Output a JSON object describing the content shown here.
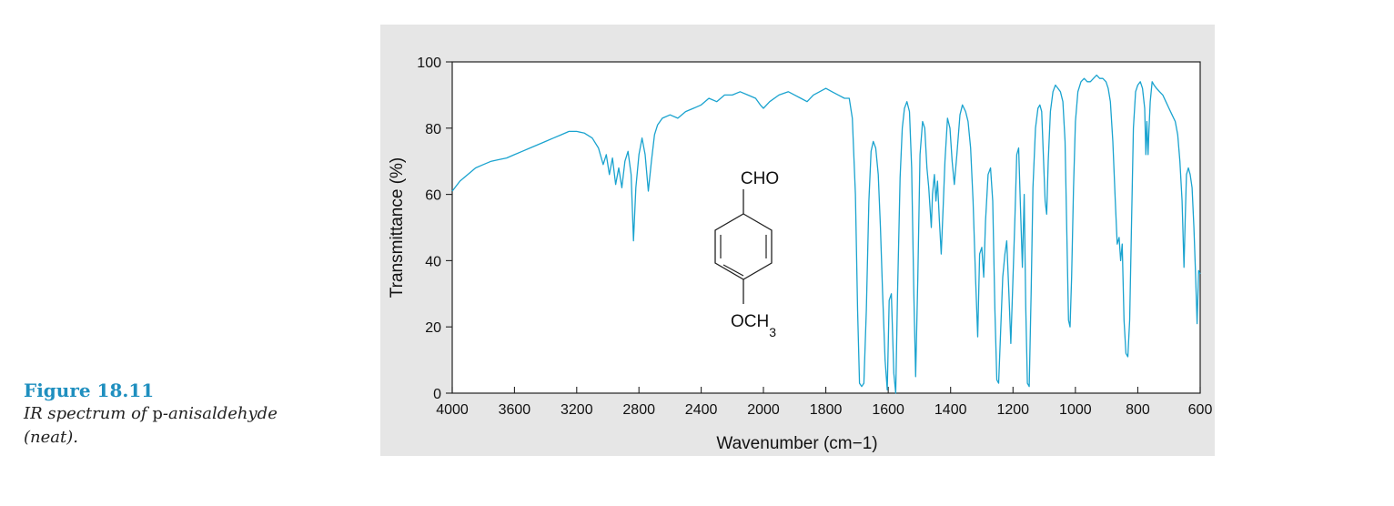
{
  "caption": {
    "label": "Figure 18.11",
    "text_prefix": "IR spectrum of ",
    "compound": "p",
    "text_suffix": "-anisaldehyde",
    "text_line2": "(neat)."
  },
  "molecule": {
    "top_group": "CHO",
    "bottom_group": "OCH",
    "bottom_subscript": "3"
  },
  "colors": {
    "line": "#1aa3cf",
    "panel": "#e6e6e6",
    "plot_bg": "#ffffff",
    "axis": "#222222"
  },
  "chart_data": {
    "type": "line",
    "title": "",
    "xlabel": "Wavenumber (cm−1)",
    "ylabel": "Transmittance (%)",
    "xlim": [
      4000,
      600
    ],
    "x_reversed": true,
    "ylim": [
      0,
      100
    ],
    "grid": false,
    "x_ticks": [
      4000,
      3600,
      3200,
      2800,
      2400,
      2000,
      1800,
      1600,
      1400,
      1200,
      1000,
      800,
      600
    ],
    "y_ticks": [
      0,
      20,
      40,
      60,
      80,
      100
    ],
    "series": [
      {
        "points": [
          [
            4000,
            61
          ],
          [
            3950,
            64
          ],
          [
            3900,
            66
          ],
          [
            3850,
            68
          ],
          [
            3800,
            69
          ],
          [
            3750,
            70
          ],
          [
            3700,
            70.5
          ],
          [
            3650,
            71
          ],
          [
            3600,
            72
          ],
          [
            3550,
            73
          ],
          [
            3500,
            74
          ],
          [
            3450,
            75
          ],
          [
            3400,
            76
          ],
          [
            3350,
            77
          ],
          [
            3300,
            78
          ],
          [
            3250,
            79
          ],
          [
            3200,
            79
          ],
          [
            3150,
            78.5
          ],
          [
            3100,
            77
          ],
          [
            3060,
            74
          ],
          [
            3030,
            69
          ],
          [
            3010,
            72
          ],
          [
            2990,
            66
          ],
          [
            2970,
            71
          ],
          [
            2950,
            63
          ],
          [
            2930,
            68
          ],
          [
            2910,
            62
          ],
          [
            2890,
            70
          ],
          [
            2870,
            73
          ],
          [
            2850,
            66
          ],
          [
            2835,
            46
          ],
          [
            2820,
            62
          ],
          [
            2800,
            72
          ],
          [
            2780,
            77
          ],
          [
            2760,
            72
          ],
          [
            2740,
            61
          ],
          [
            2720,
            70
          ],
          [
            2700,
            78
          ],
          [
            2680,
            81
          ],
          [
            2650,
            83
          ],
          [
            2600,
            84
          ],
          [
            2550,
            83
          ],
          [
            2500,
            85
          ],
          [
            2450,
            86
          ],
          [
            2400,
            87
          ],
          [
            2350,
            89
          ],
          [
            2300,
            88
          ],
          [
            2250,
            90
          ],
          [
            2200,
            90
          ],
          [
            2150,
            91
          ],
          [
            2100,
            90
          ],
          [
            2050,
            89
          ],
          [
            2020,
            87
          ],
          [
            2000,
            86
          ],
          [
            1980,
            88
          ],
          [
            1950,
            90
          ],
          [
            1920,
            91
          ],
          [
            1900,
            90
          ],
          [
            1880,
            89
          ],
          [
            1860,
            88
          ],
          [
            1840,
            90
          ],
          [
            1820,
            91
          ],
          [
            1800,
            92
          ],
          [
            1780,
            91
          ],
          [
            1760,
            90
          ],
          [
            1740,
            89
          ],
          [
            1725,
            89
          ],
          [
            1715,
            83
          ],
          [
            1705,
            60
          ],
          [
            1698,
            25
          ],
          [
            1692,
            3
          ],
          [
            1685,
            2
          ],
          [
            1678,
            3
          ],
          [
            1670,
            25
          ],
          [
            1662,
            58
          ],
          [
            1655,
            73
          ],
          [
            1648,
            76
          ],
          [
            1640,
            74
          ],
          [
            1632,
            66
          ],
          [
            1625,
            50
          ],
          [
            1618,
            30
          ],
          [
            1610,
            10
          ],
          [
            1603,
            1
          ],
          [
            1597,
            28
          ],
          [
            1590,
            30
          ],
          [
            1582,
            6
          ],
          [
            1576,
            0
          ],
          [
            1570,
            30
          ],
          [
            1562,
            65
          ],
          [
            1555,
            80
          ],
          [
            1548,
            86
          ],
          [
            1540,
            88
          ],
          [
            1532,
            85
          ],
          [
            1525,
            68
          ],
          [
            1518,
            30
          ],
          [
            1512,
            5
          ],
          [
            1505,
            35
          ],
          [
            1498,
            72
          ],
          [
            1490,
            82
          ],
          [
            1483,
            80
          ],
          [
            1476,
            68
          ],
          [
            1470,
            62
          ],
          [
            1462,
            50
          ],
          [
            1458,
            60
          ],
          [
            1452,
            66
          ],
          [
            1447,
            58
          ],
          [
            1442,
            64
          ],
          [
            1436,
            52
          ],
          [
            1430,
            42
          ],
          [
            1424,
            56
          ],
          [
            1418,
            70
          ],
          [
            1410,
            83
          ],
          [
            1402,
            80
          ],
          [
            1395,
            70
          ],
          [
            1388,
            63
          ],
          [
            1380,
            72
          ],
          [
            1370,
            84
          ],
          [
            1362,
            87
          ],
          [
            1352,
            85
          ],
          [
            1344,
            82
          ],
          [
            1336,
            74
          ],
          [
            1328,
            58
          ],
          [
            1320,
            35
          ],
          [
            1313,
            17
          ],
          [
            1307,
            42
          ],
          [
            1300,
            44
          ],
          [
            1294,
            35
          ],
          [
            1288,
            52
          ],
          [
            1280,
            66
          ],
          [
            1272,
            68
          ],
          [
            1265,
            58
          ],
          [
            1258,
            25
          ],
          [
            1252,
            4
          ],
          [
            1246,
            3
          ],
          [
            1240,
            18
          ],
          [
            1233,
            35
          ],
          [
            1226,
            42
          ],
          [
            1220,
            46
          ],
          [
            1213,
            30
          ],
          [
            1207,
            15
          ],
          [
            1200,
            35
          ],
          [
            1194,
            52
          ],
          [
            1188,
            72
          ],
          [
            1182,
            74
          ],
          [
            1176,
            56
          ],
          [
            1170,
            38
          ],
          [
            1164,
            60
          ],
          [
            1159,
            26
          ],
          [
            1154,
            3
          ],
          [
            1148,
            2
          ],
          [
            1142,
            30
          ],
          [
            1136,
            62
          ],
          [
            1128,
            80
          ],
          [
            1120,
            86
          ],
          [
            1114,
            87
          ],
          [
            1108,
            85
          ],
          [
            1102,
            70
          ],
          [
            1097,
            58
          ],
          [
            1092,
            54
          ],
          [
            1087,
            70
          ],
          [
            1080,
            85
          ],
          [
            1072,
            91
          ],
          [
            1064,
            93
          ],
          [
            1056,
            92
          ],
          [
            1048,
            91
          ],
          [
            1040,
            88
          ],
          [
            1033,
            76
          ],
          [
            1027,
            46
          ],
          [
            1022,
            22
          ],
          [
            1017,
            20
          ],
          [
            1012,
            35
          ],
          [
            1006,
            62
          ],
          [
            1000,
            82
          ],
          [
            992,
            91
          ],
          [
            982,
            94
          ],
          [
            972,
            95
          ],
          [
            962,
            94
          ],
          [
            952,
            94
          ],
          [
            942,
            95
          ],
          [
            932,
            96
          ],
          [
            922,
            95
          ],
          [
            912,
            95
          ],
          [
            902,
            94
          ],
          [
            895,
            92
          ],
          [
            888,
            88
          ],
          [
            880,
            76
          ],
          [
            872,
            58
          ],
          [
            866,
            45
          ],
          [
            860,
            47
          ],
          [
            855,
            40
          ],
          [
            850,
            45
          ],
          [
            844,
            22
          ],
          [
            838,
            12
          ],
          [
            832,
            11
          ],
          [
            826,
            22
          ],
          [
            820,
            52
          ],
          [
            814,
            80
          ],
          [
            807,
            91
          ],
          [
            800,
            93
          ],
          [
            792,
            94
          ],
          [
            785,
            92
          ],
          [
            778,
            86
          ],
          [
            774,
            72
          ],
          [
            771,
            82
          ],
          [
            767,
            72
          ],
          [
            764,
            80
          ],
          [
            760,
            88
          ],
          [
            754,
            94
          ],
          [
            748,
            93
          ],
          [
            740,
            92
          ],
          [
            730,
            91
          ],
          [
            720,
            90
          ],
          [
            710,
            88
          ],
          [
            700,
            86
          ],
          [
            690,
            84
          ],
          [
            680,
            82
          ],
          [
            672,
            78
          ],
          [
            665,
            70
          ],
          [
            658,
            58
          ],
          [
            652,
            38
          ],
          [
            648,
            52
          ],
          [
            644,
            66
          ],
          [
            638,
            68
          ],
          [
            632,
            66
          ],
          [
            626,
            62
          ],
          [
            620,
            50
          ],
          [
            615,
            36
          ],
          [
            610,
            21
          ],
          [
            605,
            37
          ],
          [
            600,
            36
          ]
        ]
      }
    ]
  }
}
